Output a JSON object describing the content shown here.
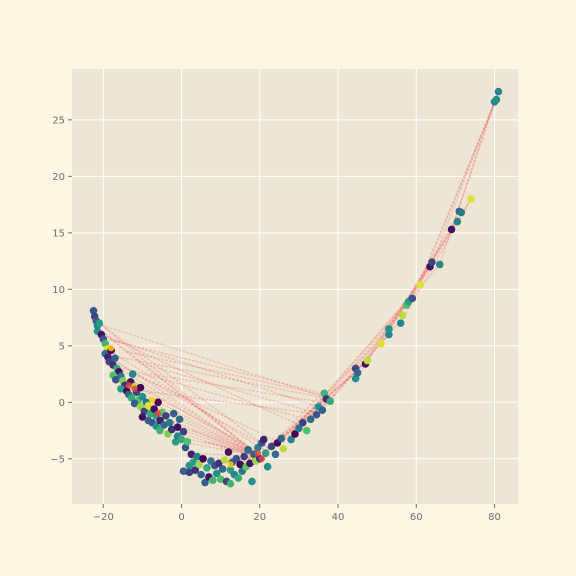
{
  "chart_data": {
    "type": "scatter",
    "title": "",
    "xlabel": "",
    "ylabel": "",
    "xlim": [
      -28,
      86
    ],
    "ylim": [
      -9,
      29.5
    ],
    "xticks": [
      -20,
      0,
      20,
      40,
      60,
      80
    ],
    "yticks": [
      -5,
      0,
      5,
      10,
      15,
      20,
      25
    ],
    "grid": true,
    "legend": "none",
    "colors": {
      "figure_background": "#fdf6e3",
      "plot_background": "#eee6d5",
      "grid": "#ffffff",
      "connector": "#e8433e",
      "colormap": [
        "#440154",
        "#3b528b",
        "#21918c",
        "#5ec962",
        "#fde725"
      ]
    },
    "points": [
      {
        "x": -22.5,
        "y": 8.1,
        "c": 0.25
      },
      {
        "x": -22.2,
        "y": 7.6,
        "c": 0.2
      },
      {
        "x": -21.8,
        "y": 7.2,
        "c": 0.3
      },
      {
        "x": -21.5,
        "y": 6.8,
        "c": 0.45
      },
      {
        "x": -21.0,
        "y": 7.0,
        "c": 0.55
      },
      {
        "x": -21.5,
        "y": 6.3,
        "c": 0.5
      },
      {
        "x": -20.5,
        "y": 6.0,
        "c": 0.05
      },
      {
        "x": -20.0,
        "y": 5.6,
        "c": 0.25
      },
      {
        "x": -19.5,
        "y": 5.2,
        "c": 0.65
      },
      {
        "x": -19.0,
        "y": 4.7,
        "c": 0.95
      },
      {
        "x": -19.5,
        "y": 4.3,
        "c": 0.35
      },
      {
        "x": -18.8,
        "y": 4.0,
        "c": 0.1
      },
      {
        "x": -18.0,
        "y": 4.6,
        "c": 0.0
      },
      {
        "x": -18.5,
        "y": 3.6,
        "c": 0.2
      },
      {
        "x": -17.5,
        "y": 3.3,
        "c": 0.15
      },
      {
        "x": -17.0,
        "y": 3.9,
        "c": 0.3
      },
      {
        "x": -16.5,
        "y": 3.0,
        "c": 0.6
      },
      {
        "x": -16.0,
        "y": 2.7,
        "c": 0.05
      },
      {
        "x": -17.5,
        "y": 2.4,
        "c": 0.7
      },
      {
        "x": -15.5,
        "y": 2.3,
        "c": 0.4
      },
      {
        "x": -16.8,
        "y": 2.0,
        "c": 0.25
      },
      {
        "x": -15.0,
        "y": 1.9,
        "c": 0.8
      },
      {
        "x": -14.5,
        "y": 1.5,
        "c": 0.15
      },
      {
        "x": -15.5,
        "y": 1.2,
        "c": 0.55
      },
      {
        "x": -14.0,
        "y": 1.0,
        "c": 0.02
      },
      {
        "x": -13.5,
        "y": 0.7,
        "c": 0.35
      },
      {
        "x": -12.5,
        "y": 2.5,
        "c": 0.45
      },
      {
        "x": -13.0,
        "y": 1.8,
        "c": 0.05
      },
      {
        "x": -12.0,
        "y": 1.4,
        "c": 0.9
      },
      {
        "x": -12.8,
        "y": 0.4,
        "c": 0.6
      },
      {
        "x": -11.5,
        "y": 0.9,
        "c": 0.2
      },
      {
        "x": -11.0,
        "y": 0.2,
        "c": 0.7
      },
      {
        "x": -12.0,
        "y": -0.1,
        "c": 0.3
      },
      {
        "x": -10.5,
        "y": 1.3,
        "c": 0.0
      },
      {
        "x": -10.0,
        "y": 0.5,
        "c": 0.5
      },
      {
        "x": -10.5,
        "y": -0.4,
        "c": 0.85
      },
      {
        "x": -9.5,
        "y": -0.8,
        "c": 0.2
      },
      {
        "x": -10.0,
        "y": -1.3,
        "c": 0.05
      },
      {
        "x": -9.0,
        "y": 0.0,
        "c": 0.4
      },
      {
        "x": -8.5,
        "y": -0.3,
        "c": 0.95
      },
      {
        "x": -8.0,
        "y": -1.0,
        "c": 0.6
      },
      {
        "x": -8.5,
        "y": -1.6,
        "c": 0.3
      },
      {
        "x": -7.5,
        "y": -1.8,
        "c": 0.25
      },
      {
        "x": -7.0,
        "y": -0.6,
        "c": 0.05
      },
      {
        "x": -6.5,
        "y": -1.2,
        "c": 0.55
      },
      {
        "x": -6.0,
        "y": 0.0,
        "c": 0.0
      },
      {
        "x": -6.5,
        "y": -2.1,
        "c": 0.5
      },
      {
        "x": -5.5,
        "y": -1.6,
        "c": 0.1
      },
      {
        "x": -5.0,
        "y": -0.9,
        "c": 0.75
      },
      {
        "x": -5.5,
        "y": -2.5,
        "c": 0.65
      },
      {
        "x": -4.5,
        "y": -2.0,
        "c": 0.35
      },
      {
        "x": -4.0,
        "y": -1.2,
        "c": 0.2
      },
      {
        "x": -3.5,
        "y": -2.8,
        "c": 0.8
      },
      {
        "x": -3.0,
        "y": -1.8,
        "c": 0.4
      },
      {
        "x": -2.5,
        "y": -2.4,
        "c": 0.15
      },
      {
        "x": -2.0,
        "y": -1.0,
        "c": 0.3
      },
      {
        "x": -1.5,
        "y": -3.5,
        "c": 0.55
      },
      {
        "x": -1.0,
        "y": -2.2,
        "c": 0.05
      },
      {
        "x": -0.5,
        "y": -1.5,
        "c": 0.35
      },
      {
        "x": -1.0,
        "y": -3.0,
        "c": 0.45
      },
      {
        "x": 0.0,
        "y": -3.3,
        "c": 0.6
      },
      {
        "x": 0.5,
        "y": -2.6,
        "c": 0.2
      },
      {
        "x": 1.0,
        "y": -4.0,
        "c": 0.25
      },
      {
        "x": 1.5,
        "y": -3.5,
        "c": 0.7
      },
      {
        "x": 0.5,
        "y": -6.1,
        "c": 0.3
      },
      {
        "x": 2.0,
        "y": -5.6,
        "c": 0.5
      },
      {
        "x": 2.5,
        "y": -4.6,
        "c": 0.1
      },
      {
        "x": 2.0,
        "y": -6.2,
        "c": 0.2
      },
      {
        "x": 3.0,
        "y": -5.3,
        "c": 0.55
      },
      {
        "x": 3.5,
        "y": -6.0,
        "c": 0.15
      },
      {
        "x": 4.0,
        "y": -4.8,
        "c": 0.45
      },
      {
        "x": 4.5,
        "y": -5.5,
        "c": 0.85
      },
      {
        "x": 5.0,
        "y": -6.4,
        "c": 0.35
      },
      {
        "x": 5.5,
        "y": -5.0,
        "c": 0.0
      },
      {
        "x": 6.0,
        "y": -7.1,
        "c": 0.3
      },
      {
        "x": 6.5,
        "y": -5.8,
        "c": 0.6
      },
      {
        "x": 7.0,
        "y": -6.6,
        "c": 0.05
      },
      {
        "x": 7.5,
        "y": -5.2,
        "c": 0.4
      },
      {
        "x": 8.0,
        "y": -6.9,
        "c": 0.65
      },
      {
        "x": 8.5,
        "y": -5.6,
        "c": 0.25
      },
      {
        "x": 9.0,
        "y": -6.3,
        "c": 0.5
      },
      {
        "x": 9.5,
        "y": -5.4,
        "c": 0.15
      },
      {
        "x": 10.0,
        "y": -6.8,
        "c": 0.7
      },
      {
        "x": 10.5,
        "y": -5.9,
        "c": 0.35
      },
      {
        "x": 11.0,
        "y": -5.1,
        "c": 0.9
      },
      {
        "x": 11.5,
        "y": -7.0,
        "c": 0.2
      },
      {
        "x": 12.0,
        "y": -4.4,
        "c": 0.05
      },
      {
        "x": 12.5,
        "y": -6.0,
        "c": 0.55
      },
      {
        "x": 13.0,
        "y": -5.3,
        "c": 0.3
      },
      {
        "x": 12.5,
        "y": -7.2,
        "c": 0.65
      },
      {
        "x": 13.5,
        "y": -6.4,
        "c": 0.45
      },
      {
        "x": 14.0,
        "y": -5.0,
        "c": 0.25
      },
      {
        "x": 14.5,
        "y": -6.7,
        "c": 0.6
      },
      {
        "x": 15.0,
        "y": -5.5,
        "c": 0.0
      },
      {
        "x": 15.5,
        "y": -6.1,
        "c": 0.4
      },
      {
        "x": 16.0,
        "y": -4.8,
        "c": 0.2
      },
      {
        "x": 16.5,
        "y": -5.7,
        "c": 0.75
      },
      {
        "x": 17.0,
        "y": -4.2,
        "c": 0.35
      },
      {
        "x": 17.5,
        "y": -5.4,
        "c": 0.05
      },
      {
        "x": 18.0,
        "y": -7.0,
        "c": 0.5
      },
      {
        "x": 18.5,
        "y": -4.6,
        "c": 0.3
      },
      {
        "x": 19.0,
        "y": -5.2,
        "c": 0.85
      },
      {
        "x": 19.5,
        "y": -4.0,
        "c": 0.45
      },
      {
        "x": 20.0,
        "y": -5.0,
        "c": 0.15
      },
      {
        "x": 20.5,
        "y": -3.6,
        "c": 0.25
      },
      {
        "x": 21.0,
        "y": -3.3,
        "c": 0.1
      },
      {
        "x": 21.5,
        "y": -4.5,
        "c": 0.55
      },
      {
        "x": 22.0,
        "y": -5.7,
        "c": 0.5
      },
      {
        "x": 23.0,
        "y": -3.9,
        "c": 0.2
      },
      {
        "x": 24.0,
        "y": -4.6,
        "c": 0.35
      },
      {
        "x": 24.5,
        "y": -3.6,
        "c": 0.05
      },
      {
        "x": 25.5,
        "y": -3.2,
        "c": 0.3
      },
      {
        "x": 26.0,
        "y": -4.1,
        "c": 0.9
      },
      {
        "x": 28.0,
        "y": -3.3,
        "c": 0.45
      },
      {
        "x": 29.0,
        "y": -2.8,
        "c": 0.0
      },
      {
        "x": 30.0,
        "y": -2.3,
        "c": 0.4
      },
      {
        "x": 31.0,
        "y": -1.8,
        "c": 0.2
      },
      {
        "x": 32.0,
        "y": -2.5,
        "c": 0.7
      },
      {
        "x": 33.0,
        "y": -1.5,
        "c": 0.35
      },
      {
        "x": 34.5,
        "y": -1.1,
        "c": 0.25
      },
      {
        "x": 35.0,
        "y": -0.4,
        "c": 0.5
      },
      {
        "x": 36.0,
        "y": -0.7,
        "c": 0.3
      },
      {
        "x": 36.5,
        "y": 0.8,
        "c": 0.65
      },
      {
        "x": 37.0,
        "y": 0.3,
        "c": 0.15
      },
      {
        "x": 38.0,
        "y": 0.1,
        "c": 0.6
      },
      {
        "x": 44.5,
        "y": 3.0,
        "c": 0.2
      },
      {
        "x": 44.5,
        "y": 2.1,
        "c": 0.5
      },
      {
        "x": 45.0,
        "y": 2.6,
        "c": 0.35
      },
      {
        "x": 47.0,
        "y": 3.4,
        "c": 0.05
      },
      {
        "x": 47.5,
        "y": 3.7,
        "c": 0.9
      },
      {
        "x": 51.0,
        "y": 5.2,
        "c": 0.95
      },
      {
        "x": 53.0,
        "y": 6.0,
        "c": 0.45
      },
      {
        "x": 53.0,
        "y": 6.5,
        "c": 0.5
      },
      {
        "x": 56.0,
        "y": 7.0,
        "c": 0.45
      },
      {
        "x": 56.5,
        "y": 7.7,
        "c": 0.9
      },
      {
        "x": 57.5,
        "y": 8.6,
        "c": 0.7
      },
      {
        "x": 58.0,
        "y": 8.9,
        "c": 0.55
      },
      {
        "x": 59.0,
        "y": 9.2,
        "c": 0.25
      },
      {
        "x": 61.0,
        "y": 10.4,
        "c": 0.95
      },
      {
        "x": 63.5,
        "y": 12.0,
        "c": 0.05
      },
      {
        "x": 64.0,
        "y": 12.4,
        "c": 0.2
      },
      {
        "x": 66.0,
        "y": 12.2,
        "c": 0.45
      },
      {
        "x": 69.0,
        "y": 15.3,
        "c": 0.05
      },
      {
        "x": 70.5,
        "y": 16.0,
        "c": 0.45
      },
      {
        "x": 71.0,
        "y": 16.9,
        "c": 0.3
      },
      {
        "x": 71.5,
        "y": 16.8,
        "c": 0.4
      },
      {
        "x": 74.0,
        "y": 18.0,
        "c": 0.95
      },
      {
        "x": 80.0,
        "y": 26.6,
        "c": 0.45
      },
      {
        "x": 80.5,
        "y": 26.8,
        "c": 0.5
      },
      {
        "x": 81.0,
        "y": 27.5,
        "c": 0.45
      }
    ],
    "overlay_points": [
      {
        "x": -18.0,
        "y": 4.8,
        "c": "#ffcc00"
      },
      {
        "x": -13.5,
        "y": 1.5,
        "c": "#e8433e"
      },
      {
        "x": -12.0,
        "y": 1.2,
        "c": "#e8433e"
      },
      {
        "x": -7.5,
        "y": 0.2,
        "c": "#ffcc00"
      },
      {
        "x": -6.0,
        "y": -1.0,
        "c": "#e8433e"
      },
      {
        "x": 19.5,
        "y": -4.5,
        "c": "#e8433e"
      },
      {
        "x": 12.5,
        "y": -5.5,
        "c": "#ffcc00"
      },
      {
        "x": 20.5,
        "y": -5.0,
        "c": "#e8433e"
      }
    ],
    "hub": {
      "x": 20.0,
      "y": -4.8
    },
    "connections": [
      [
        -22,
        7.3,
        20,
        -4.8
      ],
      [
        -21,
        6.5,
        20,
        -4.8
      ],
      [
        -20,
        6.8,
        38,
        0.3
      ],
      [
        -19,
        5.8,
        20,
        -4.8
      ],
      [
        -18,
        4.5,
        21,
        -4.2
      ],
      [
        -17,
        5.5,
        36,
        -0.5
      ],
      [
        -16,
        3.5,
        20,
        -4.8
      ],
      [
        -15,
        2.8,
        19,
        -4.5
      ],
      [
        -14,
        4.5,
        38,
        0.5
      ],
      [
        -13,
        2.0,
        20,
        -4.8
      ],
      [
        -12,
        1.5,
        20,
        -4.4
      ],
      [
        -11,
        3.5,
        35,
        -1.0
      ],
      [
        -10,
        0.8,
        20,
        -4.8
      ],
      [
        -9,
        0.2,
        20,
        -4.8
      ],
      [
        -8,
        2.5,
        36,
        0.0
      ],
      [
        -7,
        -0.5,
        20,
        -4.8
      ],
      [
        -6,
        -1.2,
        20,
        -4.6
      ],
      [
        -5,
        -1.5,
        20,
        -4.8
      ],
      [
        -4,
        -2.0,
        20,
        -4.8
      ],
      [
        -3,
        -2.5,
        20,
        -4.8
      ],
      [
        -2,
        -3.0,
        20,
        -4.6
      ],
      [
        0,
        -3.5,
        20,
        -4.8
      ],
      [
        -20,
        6.0,
        30,
        -2.0
      ],
      [
        -15,
        3.0,
        32,
        -1.5
      ],
      [
        -10,
        1.0,
        34,
        -1.0
      ],
      [
        -18,
        5.5,
        36,
        0.8
      ],
      [
        -16,
        4.0,
        38,
        0.3
      ],
      [
        -12,
        2.5,
        25,
        -3.5
      ],
      [
        -21,
        7.0,
        24,
        -4.5
      ],
      [
        -19,
        4.0,
        22,
        -4.0
      ],
      [
        2,
        -4.5,
        20,
        -4.8
      ],
      [
        5,
        -5.0,
        20,
        -4.8
      ],
      [
        8,
        -5.5,
        20,
        -4.8
      ],
      [
        11,
        -5.2,
        20,
        -4.8
      ],
      [
        14,
        -5.5,
        20,
        -4.8
      ],
      [
        17,
        -5.0,
        20,
        -4.8
      ],
      [
        6,
        -3.5,
        20,
        -4.8
      ],
      [
        10,
        -4.0,
        20,
        -4.8
      ],
      [
        3,
        -2.5,
        20,
        -4.8
      ],
      [
        21,
        -4.5,
        38,
        0.3
      ],
      [
        22,
        -4.0,
        45,
        2.8
      ],
      [
        24,
        -3.8,
        53,
        6.3
      ],
      [
        26,
        -3.5,
        57,
        8.7
      ],
      [
        28,
        -3.0,
        61,
        10.4
      ],
      [
        30,
        -2.5,
        66,
        12.2
      ],
      [
        20,
        -4.8,
        45,
        2.8
      ],
      [
        20,
        -4.8,
        47,
        3.5
      ],
      [
        38,
        0.3,
        56,
        7.2
      ],
      [
        45,
        2.8,
        64,
        12.2
      ],
      [
        53,
        6.3,
        71,
        16.8
      ],
      [
        57,
        8.7,
        74,
        18.0
      ],
      [
        61,
        10.4,
        80,
        26.6
      ],
      [
        64,
        12.2,
        81,
        27.5
      ],
      [
        47,
        3.5,
        69,
        15.3
      ],
      [
        51,
        5.2,
        70.5,
        16.0
      ],
      [
        59,
        9.2,
        80.5,
        26.8
      ],
      [
        36,
        -0.5,
        59,
        9.2
      ],
      [
        35,
        -1.0,
        53,
        6.0
      ],
      [
        20,
        -4.8,
        38,
        0.3
      ],
      [
        20,
        -4.8,
        36,
        0.8
      ],
      [
        66,
        12.2,
        80,
        26.6
      ],
      [
        69,
        15.3,
        81,
        27.5
      ],
      [
        56,
        7.0,
        74,
        18.0
      ],
      [
        44.5,
        2.1,
        63.5,
        12.0
      ]
    ]
  }
}
